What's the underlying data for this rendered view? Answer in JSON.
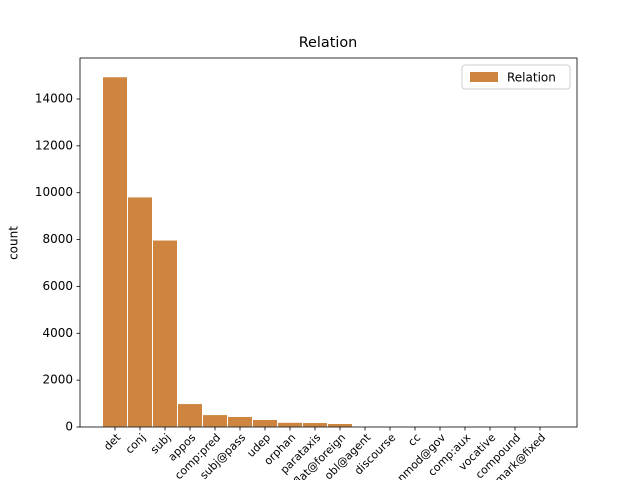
{
  "chart_data": {
    "type": "bar",
    "title": "Relation",
    "y_label": "count",
    "categories": [
      "det",
      "conj",
      "subj",
      "appos",
      "comp:pred",
      "subj@pass",
      "udep",
      "orphan",
      "parataxis",
      "flat@foreign",
      "obl@agent",
      "discourse",
      "cc",
      "nmod@gov",
      "comp:aux",
      "vocative",
      "compound",
      "mark@fixed"
    ],
    "series": [
      {
        "name": "Relation",
        "color": "#cd853f",
        "values": [
          14950,
          9820,
          7980,
          1000,
          530,
          450,
          320,
          200,
          190,
          150,
          15,
          12,
          10,
          8,
          6,
          5,
          4,
          3
        ]
      }
    ],
    "ylim": [
      0,
      15750
    ],
    "yticks": [
      0,
      2000,
      4000,
      6000,
      8000,
      10000,
      12000,
      14000
    ],
    "legend": "upper right"
  }
}
